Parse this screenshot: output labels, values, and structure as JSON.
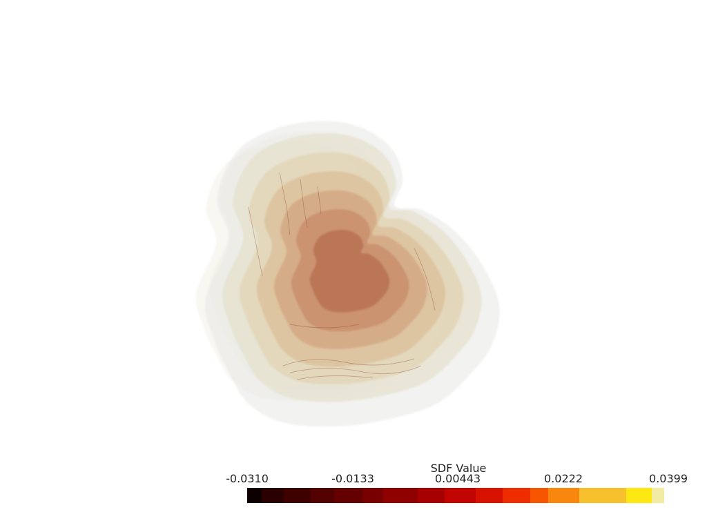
{
  "scene": {
    "description_icon": "sdf-isosurface-render",
    "surface_colors": [
      "#e7e7e5",
      "#e6e1cd",
      "#e2d3b3",
      "#dcc09a",
      "#d3a783",
      "#c98e6c",
      "#b97353"
    ]
  },
  "colorbar": {
    "title": "SDF Value",
    "ticks": [
      "-0.0310",
      "-0.0133",
      "0.00443",
      "0.0222",
      "0.0399"
    ],
    "range": [
      -0.031,
      0.0399
    ],
    "colors": [
      "#0d0000",
      "#2a0000",
      "#3f0000",
      "#520000",
      "#650000",
      "#7a0000",
      "#8f0000",
      "#a70000",
      "#c10400",
      "#d81200",
      "#ee2c00",
      "#f75500",
      "#f9860d",
      "#f6c12c",
      "#fde712",
      "#f2eba3"
    ]
  }
}
